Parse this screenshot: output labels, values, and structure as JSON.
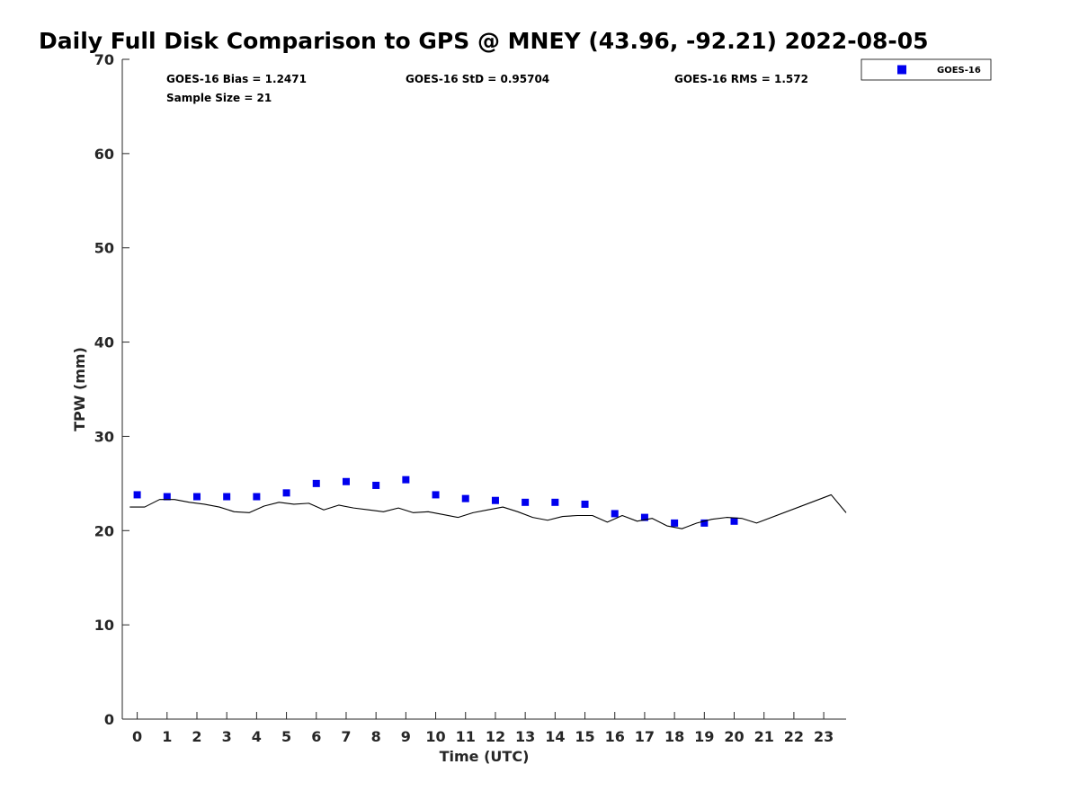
{
  "chart_data": {
    "type": "scatter",
    "title": "Daily Full Disk Comparison to GPS @ MNEY (43.96, -92.21) 2022-08-05",
    "xlabel": "Time (UTC)",
    "ylabel": "TPW (mm)",
    "xlim": [
      -0.5,
      23.75
    ],
    "ylim": [
      0,
      70
    ],
    "xticks": [
      0,
      1,
      2,
      3,
      4,
      5,
      6,
      7,
      8,
      9,
      10,
      11,
      12,
      13,
      14,
      15,
      16,
      17,
      18,
      19,
      20,
      21,
      22,
      23
    ],
    "yticks": [
      0,
      10,
      20,
      30,
      40,
      50,
      60,
      70
    ],
    "grid": false,
    "legend_position": "top-right outside",
    "stats": {
      "bias": "GOES-16 Bias = 1.2471",
      "std": "GOES-16 StD = 0.95704",
      "rms": "GOES-16 RMS = 1.572",
      "sample": "Sample Size = 21"
    },
    "series": [
      {
        "name": "GOES-16",
        "kind": "scatter",
        "marker": "square",
        "color": "#0000ee",
        "x": [
          0,
          1,
          2,
          3,
          4,
          5,
          6,
          7,
          8,
          9,
          10,
          11,
          12,
          13,
          14,
          15,
          16,
          17,
          18,
          19,
          20
        ],
        "y": [
          23.8,
          23.6,
          23.6,
          23.6,
          23.6,
          24.0,
          25.0,
          25.2,
          24.8,
          25.4,
          23.8,
          23.4,
          23.2,
          23.0,
          23.0,
          22.8,
          21.8,
          21.4,
          20.8,
          20.8,
          21.0
        ]
      },
      {
        "kind": "line",
        "color": "#000000",
        "x": [
          -0.25,
          0.25,
          0.75,
          1.25,
          1.75,
          2.25,
          2.75,
          3.25,
          3.75,
          4.25,
          4.75,
          5.25,
          5.75,
          6.25,
          6.75,
          7.25,
          7.75,
          8.25,
          8.75,
          9.25,
          9.75,
          10.25,
          10.75,
          11.25,
          11.75,
          12.25,
          12.75,
          13.25,
          13.75,
          14.25,
          14.75,
          15.25,
          15.75,
          16.25,
          16.75,
          17.25,
          17.75,
          18.25,
          18.75,
          19.25,
          19.75,
          20.25,
          20.75,
          23.25,
          23.75
        ],
        "y": [
          22.5,
          22.5,
          23.3,
          23.3,
          23.0,
          22.8,
          22.5,
          22.0,
          21.9,
          22.6,
          23.0,
          22.8,
          22.9,
          22.2,
          22.7,
          22.4,
          22.2,
          22.0,
          22.4,
          21.9,
          22.0,
          21.7,
          21.4,
          21.9,
          22.2,
          22.5,
          22.0,
          21.4,
          21.1,
          21.5,
          21.6,
          21.6,
          20.9,
          21.6,
          21.0,
          21.3,
          20.5,
          20.2,
          20.8,
          21.2,
          21.4,
          21.3,
          20.8,
          23.8,
          21.9
        ]
      }
    ]
  }
}
